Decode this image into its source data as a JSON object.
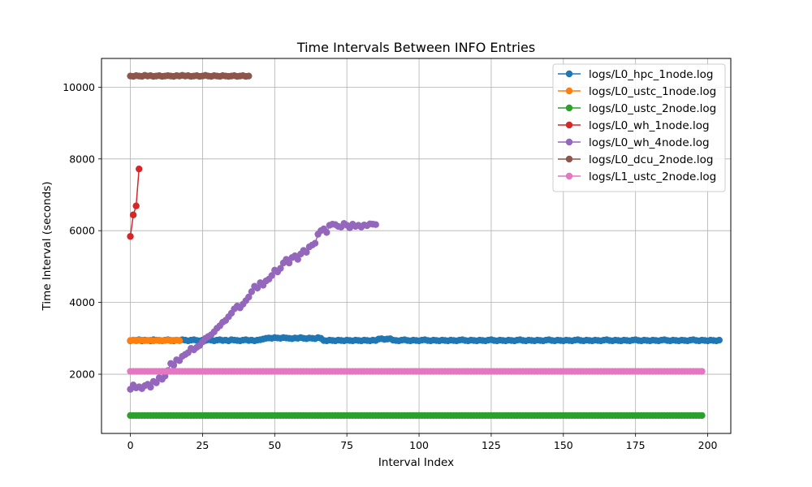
{
  "chart_data": {
    "type": "line",
    "title": "Time Intervals Between INFO Entries",
    "xlabel": "Interval Index",
    "ylabel": "Time Interval (seconds)",
    "xlim": [
      -10,
      208
    ],
    "ylim": [
      350,
      10800
    ],
    "x_ticks": [
      0,
      25,
      50,
      75,
      100,
      125,
      150,
      175,
      200
    ],
    "y_ticks": [
      2000,
      4000,
      6000,
      8000,
      10000
    ],
    "grid": true,
    "legend_location": "upper right",
    "series": [
      {
        "name": "logs/L0_hpc_1node.log",
        "color": "#1f77b4",
        "x_start": 0,
        "values": [
          2930,
          2950,
          2940,
          2960,
          2930,
          2950,
          2940,
          2930,
          2960,
          2950,
          2940,
          2930,
          2950,
          2960,
          2940,
          2930,
          2950,
          2940,
          2960,
          2950,
          2930,
          2950,
          2960,
          2940,
          2930,
          2950,
          2940,
          2960,
          2950,
          2930,
          2950,
          2960,
          2940,
          2950,
          2930,
          2960,
          2950,
          2940,
          2930,
          2950,
          2960,
          2940,
          2950,
          2930,
          2950,
          2960,
          2980,
          3000,
          3010,
          3000,
          3020,
          3010,
          3000,
          3020,
          3010,
          3000,
          2990,
          3010,
          3000,
          3020,
          3000,
          2990,
          3010,
          3000,
          2990,
          3020,
          3000,
          2940,
          2930,
          2950,
          2940,
          2930,
          2950,
          2940,
          2930,
          2950,
          2940,
          2930,
          2950,
          2940,
          2930,
          2950,
          2940,
          2930,
          2950,
          2940,
          2980,
          2990,
          2970,
          2980,
          2990,
          2950,
          2940,
          2930,
          2950,
          2960,
          2940,
          2930,
          2950,
          2940,
          2930,
          2950,
          2960,
          2940,
          2930,
          2950,
          2940,
          2930,
          2950,
          2940,
          2930,
          2950,
          2940,
          2930,
          2950,
          2960,
          2940,
          2930,
          2950,
          2940,
          2930,
          2950,
          2940,
          2930,
          2950,
          2960,
          2940,
          2930,
          2950,
          2940,
          2930,
          2950,
          2940,
          2930,
          2950,
          2960,
          2940,
          2930,
          2950,
          2940,
          2930,
          2950,
          2940,
          2930,
          2950,
          2960,
          2940,
          2930,
          2950,
          2940,
          2930,
          2950,
          2940,
          2930,
          2950,
          2960,
          2940,
          2930,
          2950,
          2940,
          2930,
          2950,
          2940,
          2930,
          2950,
          2960,
          2940,
          2930,
          2950,
          2940,
          2930,
          2950,
          2940,
          2930,
          2950,
          2960,
          2940,
          2930,
          2950,
          2940,
          2930,
          2950,
          2940,
          2930,
          2950,
          2960,
          2940,
          2930,
          2950,
          2940,
          2930,
          2950,
          2940,
          2930,
          2950,
          2960,
          2940,
          2930,
          2950,
          2940,
          2930,
          2950,
          2940,
          2930,
          2950
        ]
      },
      {
        "name": "logs/L0_ustc_1node.log",
        "color": "#ff7f0e",
        "x_start": 0,
        "values": [
          2940,
          2950,
          2930,
          2945,
          2950,
          2935,
          2940,
          2950,
          2930,
          2945,
          2950,
          2935,
          2940,
          2950,
          2930,
          2945,
          2950,
          2935
        ]
      },
      {
        "name": "logs/L0_ustc_2node.log",
        "color": "#2ca02c",
        "x_start": 0,
        "constant": 850,
        "count": 199
      },
      {
        "name": "logs/L0_wh_1node.log",
        "color": "#d62728",
        "x_start": 0,
        "values": [
          5840,
          6440,
          6690,
          7720
        ]
      },
      {
        "name": "logs/L0_wh_4node.log",
        "color": "#9467bd",
        "x_start": 0,
        "values": [
          1580,
          1700,
          1620,
          1650,
          1600,
          1680,
          1720,
          1640,
          1800,
          1760,
          1900,
          1860,
          1950,
          2100,
          2300,
          2250,
          2400,
          2380,
          2500,
          2550,
          2600,
          2720,
          2680,
          2750,
          2800,
          2900,
          3000,
          3050,
          3100,
          3180,
          3280,
          3350,
          3450,
          3500,
          3600,
          3700,
          3820,
          3900,
          3850,
          3950,
          4050,
          4150,
          4300,
          4450,
          4400,
          4550,
          4480,
          4600,
          4650,
          4750,
          4900,
          4850,
          4950,
          5100,
          5200,
          5100,
          5250,
          5300,
          5200,
          5350,
          5450,
          5400,
          5550,
          5600,
          5650,
          5900,
          6000,
          6050,
          5950,
          6150,
          6180,
          6170,
          6120,
          6100,
          6200,
          6150,
          6080,
          6180,
          6120,
          6150,
          6100,
          6160,
          6140,
          6190,
          6180,
          6170
        ]
      },
      {
        "name": "logs/L0_dcu_2node.log",
        "color": "#8c564b",
        "x_start": 0,
        "values": [
          10310,
          10300,
          10320,
          10310,
          10300,
          10330,
          10310,
          10320,
          10300,
          10310,
          10320,
          10300,
          10310,
          10320,
          10310,
          10300,
          10320,
          10310,
          10330,
          10310,
          10320,
          10300,
          10310,
          10320,
          10300,
          10310,
          10330,
          10310,
          10300,
          10320,
          10310,
          10300,
          10320,
          10310,
          10300,
          10310,
          10320,
          10300,
          10310,
          10320,
          10300,
          10310
        ]
      },
      {
        "name": "logs/L1_ustc_2node.log",
        "color": "#e377c2",
        "x_start": 0,
        "constant": 2080,
        "count": 199
      }
    ]
  }
}
